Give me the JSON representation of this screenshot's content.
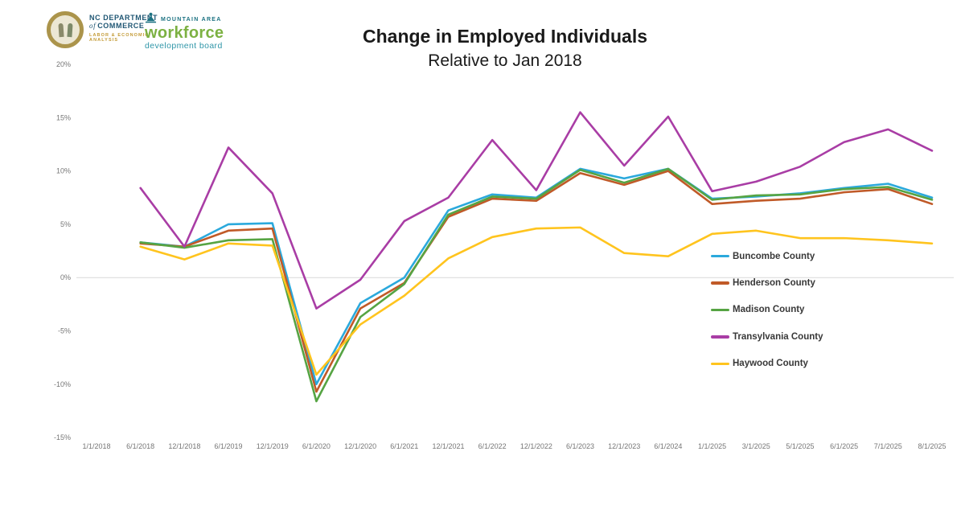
{
  "header": {
    "commerce_logo": {
      "line1": "NC DEPARTMENT",
      "of": "of",
      "line2": "COMMERCE",
      "line3": "LABOR & ECONOMIC",
      "line4": "ANALYSIS"
    },
    "workforce_logo": {
      "area": "MOUNTAIN AREA",
      "name": "workforce",
      "sub": "development board",
      "icon": "person-mountain-icon",
      "teal": "#1c7282",
      "green": "#7cb142"
    }
  },
  "title": "Change in Employed Individuals",
  "subtitle": "Relative to Jan 2018",
  "chart_data": {
    "type": "line",
    "title": "Change in Employed Individuals",
    "subtitle": "Relative to Jan 2018",
    "xlabel": "",
    "ylabel": "",
    "ylim": [
      -15,
      20
    ],
    "grid": "horizontal line at 0% only",
    "gridline_color": "#d9d9d9",
    "axis_text_color": "#767676",
    "legend_position": "inside-right",
    "categories": [
      "1/1/2018",
      "6/1/2018",
      "12/1/2018",
      "6/1/2019",
      "12/1/2019",
      "6/1/2020",
      "12/1/2020",
      "6/1/2021",
      "12/1/2021",
      "6/1/2022",
      "12/1/2022",
      "6/1/2023",
      "12/1/2023",
      "6/1/2024",
      "1/1/2025",
      "3/1/2025",
      "5/1/2025",
      "6/1/2025",
      "7/1/2025",
      "8/1/2025"
    ],
    "yticks": [
      {
        "label": "20%",
        "value": 20
      },
      {
        "label": "15%",
        "value": 15
      },
      {
        "label": "10%",
        "value": 10
      },
      {
        "label": "5%",
        "value": 5
      },
      {
        "label": "0%",
        "value": 0
      },
      {
        "label": "-5%",
        "value": -5
      },
      {
        "label": "-10%",
        "value": -10
      },
      {
        "label": "-15%",
        "value": -15
      }
    ],
    "series": [
      {
        "name": "Buncombe County",
        "color": "#2ba9dc",
        "values": [
          null,
          3.3,
          2.9,
          5.0,
          5.1,
          -10.0,
          -2.4,
          0.0,
          6.3,
          7.8,
          7.5,
          10.2,
          9.3,
          10.2,
          7.4,
          7.6,
          7.9,
          8.4,
          8.8,
          7.5
        ]
      },
      {
        "name": "Henderson County",
        "color": "#c05a28",
        "values": [
          null,
          3.2,
          2.9,
          4.4,
          4.6,
          -10.7,
          -2.9,
          -0.5,
          5.7,
          7.4,
          7.2,
          9.8,
          8.7,
          10.0,
          6.9,
          7.2,
          7.4,
          8.0,
          8.3,
          6.9
        ]
      },
      {
        "name": "Madison County",
        "color": "#56a443",
        "values": [
          null,
          3.3,
          2.8,
          3.5,
          3.6,
          -11.6,
          -3.7,
          -0.6,
          5.9,
          7.6,
          7.4,
          10.1,
          8.9,
          10.2,
          7.3,
          7.7,
          7.8,
          8.3,
          8.5,
          7.3
        ]
      },
      {
        "name": "Transylvania County",
        "color": "#a93da5",
        "values": [
          null,
          8.4,
          2.9,
          12.2,
          7.9,
          -2.9,
          -0.2,
          5.3,
          7.5,
          12.9,
          8.2,
          15.5,
          10.5,
          15.1,
          8.1,
          9.0,
          10.4,
          12.7,
          13.9,
          11.9
        ]
      },
      {
        "name": "Haywood County",
        "color": "#ffc41e",
        "values": [
          null,
          2.9,
          1.7,
          3.2,
          3.0,
          -9.1,
          -4.4,
          -1.7,
          1.8,
          3.8,
          4.6,
          4.7,
          2.3,
          2.0,
          4.1,
          4.4,
          3.7,
          3.7,
          3.5,
          3.2
        ]
      }
    ]
  }
}
